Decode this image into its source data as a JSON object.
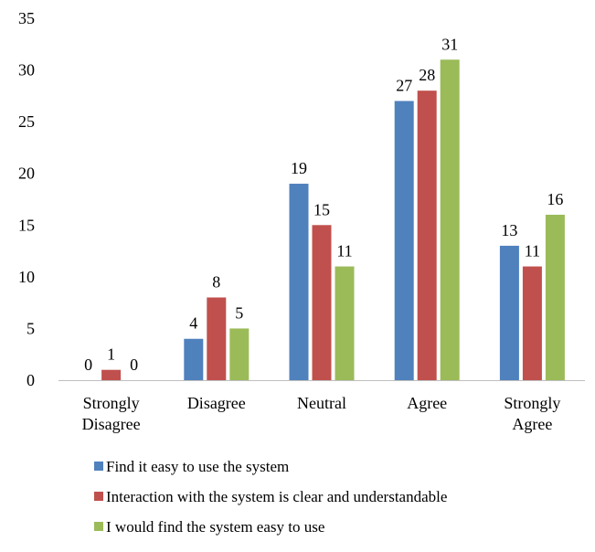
{
  "chart_data": {
    "type": "bar",
    "categories": [
      [
        "Strongly",
        "Disagree"
      ],
      [
        "Disagree"
      ],
      [
        "Neutral"
      ],
      [
        "Agree"
      ],
      [
        "Strongly",
        "Agree"
      ]
    ],
    "series": [
      {
        "name": "Find it easy to use the system",
        "color": "#4f81bd",
        "values": [
          0,
          4,
          19,
          27,
          13
        ]
      },
      {
        "name": "Interaction with the system is clear and understandable",
        "color": "#c0504d",
        "values": [
          1,
          8,
          15,
          28,
          11
        ]
      },
      {
        "name": "I would find the system easy to use",
        "color": "#9bbb59",
        "values": [
          0,
          5,
          11,
          31,
          16
        ]
      }
    ],
    "yticks": [
      "0",
      "5",
      "10",
      "15",
      "20",
      "25",
      "30",
      "35"
    ],
    "ylim": [
      0,
      35
    ],
    "grid": false,
    "legend_position": "bottom",
    "data_labels": true,
    "title": "",
    "xlabel": "",
    "ylabel": ""
  }
}
